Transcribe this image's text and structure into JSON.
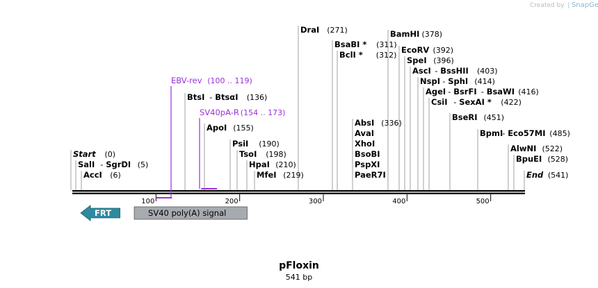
{
  "credit": {
    "prefix": "Created by",
    "brand": "SnapGene",
    "icon": "snapgene-logo-icon"
  },
  "plasmid": {
    "name": "pFloxin",
    "length_label": "541 bp",
    "length": 541
  },
  "colors": {
    "backbone": "#000000",
    "site_line": "#a0a0a0",
    "primer": "#9b30d9",
    "frt_fill": "#2e8a9e",
    "sv40_fill": "#a7abb0",
    "label": "#000000"
  },
  "ruler": {
    "ticks": [
      100,
      200,
      300,
      400,
      500
    ]
  },
  "sites": [
    {
      "name": "DraI",
      "pos": 271,
      "pos_label": "(271)"
    },
    {
      "name": "BamHI",
      "pos": 378,
      "pos_label": "(378)"
    },
    {
      "name": "BsaBI *",
      "pos": 311,
      "pos_label": "(311)"
    },
    {
      "name": "BclI *",
      "pos": 312,
      "pos_label": "(312)"
    },
    {
      "name": "EcoRV",
      "pos": 392,
      "pos_label": "(392)"
    },
    {
      "name": "SpeI",
      "pos": 396,
      "pos_label": "(396)"
    },
    {
      "name": "AscI",
      "alt": "BssHII",
      "pos": 403,
      "pos_label": "(403)"
    },
    {
      "name": "NspI",
      "alt": "SphI",
      "pos": 414,
      "pos_label": "(414)"
    },
    {
      "name": "AgeI",
      "alt": "BsrFI",
      "alt2": "BsaWI",
      "pos": 416,
      "pos_label": "(416)"
    },
    {
      "name": "CsiI",
      "alt": "SexAI *",
      "pos": 422,
      "pos_label": "(422)"
    },
    {
      "name": "BtsI",
      "alt": "BtsαI",
      "pos": 136,
      "pos_label": "(136)"
    },
    {
      "name": "ApoI",
      "pos": 155,
      "pos_label": "(155)"
    },
    {
      "name": "AbsI",
      "pos": 336,
      "pos_label": "(336)",
      "group": [
        "AvaI",
        "XhoI",
        "BsoBI",
        "PspXI",
        "PaeR7I"
      ]
    },
    {
      "name": "BseRI",
      "pos": 451,
      "pos_label": "(451)"
    },
    {
      "name": "BpmI",
      "alt": "Eco57MI",
      "pos": 485,
      "pos_label": "(485)"
    },
    {
      "name": "PsiI",
      "pos": 190,
      "pos_label": "(190)"
    },
    {
      "name": "TsoI",
      "pos": 198,
      "pos_label": "(198)"
    },
    {
      "name": "HpaI",
      "pos": 210,
      "pos_label": "(210)"
    },
    {
      "name": "MfeI",
      "pos": 219,
      "pos_label": "(219)"
    },
    {
      "name": "AlwNI",
      "pos": 522,
      "pos_label": "(522)"
    },
    {
      "name": "BpuEI",
      "pos": 528,
      "pos_label": "(528)"
    },
    {
      "name": "Start",
      "pos": 0,
      "pos_label": "(0)",
      "italic": true
    },
    {
      "name": "SalI",
      "alt": "SgrDI",
      "pos": 5,
      "pos_label": "(5)"
    },
    {
      "name": "AccI",
      "pos": 6,
      "pos_label": "(6)"
    },
    {
      "name": "End",
      "pos": 541,
      "pos_label": "(541)",
      "italic": true
    }
  ],
  "primers": [
    {
      "name": "EBV-rev",
      "range_label": "(100 .. 119)",
      "start": 100,
      "end": 119
    },
    {
      "name": "SV40pA-R",
      "range_label": "(154 .. 173)",
      "start": 154,
      "end": 173
    }
  ],
  "features": [
    {
      "name": "FRT",
      "kind": "arrow-left",
      "start": 10,
      "end": 57
    },
    {
      "name": "SV40 poly(A) signal",
      "kind": "box",
      "start": 74,
      "end": 209
    }
  ]
}
